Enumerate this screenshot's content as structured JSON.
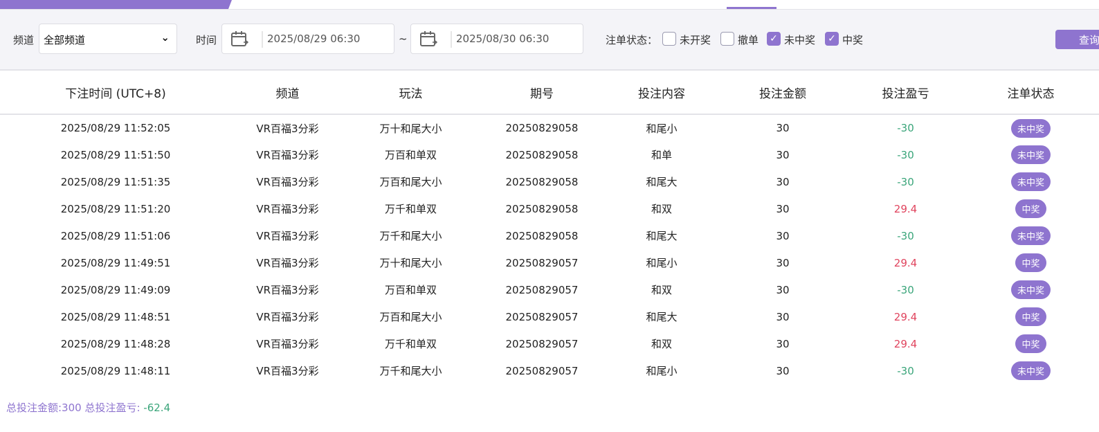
{
  "filter": {
    "channel_label": "频道",
    "channel_value": "全部频道",
    "time_label": "时间",
    "start": "2025/08/29 06:30",
    "tilde": "~",
    "end": "2025/08/30 06:30",
    "status_label": "注单状态：",
    "statuses": [
      {
        "label": "未开奖",
        "checked": false
      },
      {
        "label": "撤单",
        "checked": false
      },
      {
        "label": "未中奖",
        "checked": true
      },
      {
        "label": "中奖",
        "checked": true
      }
    ],
    "query_label": "查询"
  },
  "columns": [
    "下注时间 (UTC+8)",
    "频道",
    "玩法",
    "期号",
    "投注内容",
    "投注金额",
    "投注盈亏",
    "注单状态"
  ],
  "rows": [
    [
      "2025/08/29 11:52:05",
      "VR百福3分彩",
      "万十和尾大小",
      "20250829058",
      "和尾小",
      "30",
      "-30",
      "未中奖"
    ],
    [
      "2025/08/29 11:51:50",
      "VR百福3分彩",
      "万百和单双",
      "20250829058",
      "和单",
      "30",
      "-30",
      "未中奖"
    ],
    [
      "2025/08/29 11:51:35",
      "VR百福3分彩",
      "万百和尾大小",
      "20250829058",
      "和尾大",
      "30",
      "-30",
      "未中奖"
    ],
    [
      "2025/08/29 11:51:20",
      "VR百福3分彩",
      "万千和单双",
      "20250829058",
      "和双",
      "30",
      "29.4",
      "中奖"
    ],
    [
      "2025/08/29 11:51:06",
      "VR百福3分彩",
      "万千和尾大小",
      "20250829058",
      "和尾大",
      "30",
      "-30",
      "未中奖"
    ],
    [
      "2025/08/29 11:49:51",
      "VR百福3分彩",
      "万十和尾大小",
      "20250829057",
      "和尾小",
      "30",
      "29.4",
      "中奖"
    ],
    [
      "2025/08/29 11:49:09",
      "VR百福3分彩",
      "万百和单双",
      "20250829057",
      "和双",
      "30",
      "-30",
      "未中奖"
    ],
    [
      "2025/08/29 11:48:51",
      "VR百福3分彩",
      "万百和尾大小",
      "20250829057",
      "和尾大",
      "30",
      "29.4",
      "中奖"
    ],
    [
      "2025/08/29 11:48:28",
      "VR百福3分彩",
      "万千和单双",
      "20250829057",
      "和双",
      "30",
      "29.4",
      "中奖"
    ],
    [
      "2025/08/29 11:48:11",
      "VR百福3分彩",
      "万千和尾大小",
      "20250829057",
      "和尾小",
      "30",
      "-30",
      "未中奖"
    ]
  ],
  "summary": {
    "amount_label": "总投注金额:300 总投注盈亏:",
    "profit": "-62.4"
  },
  "colors": {
    "accent": "#8e74cf",
    "loss": "#3aa57a",
    "win": "#e0445e"
  }
}
